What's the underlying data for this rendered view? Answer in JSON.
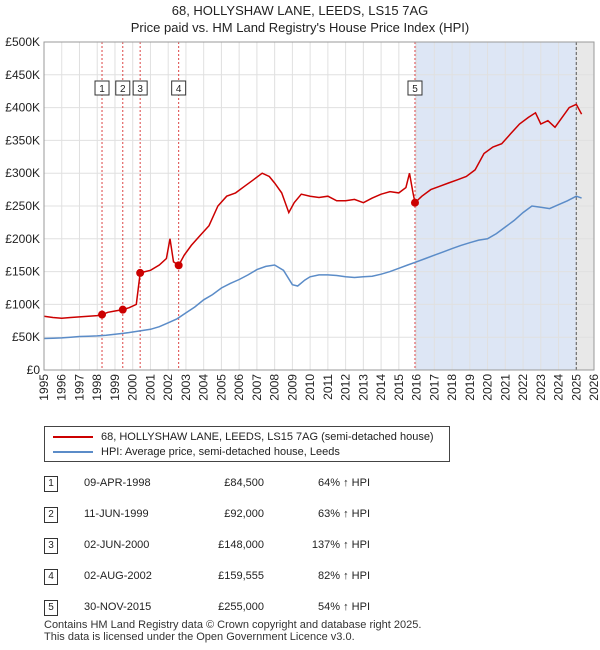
{
  "title_line1": "68, HOLLYSHAW LANE, LEEDS, LS15 7AG",
  "title_line2": "Price paid vs. HM Land Registry's House Price Index (HPI)",
  "legend": {
    "property": "68, HOLLYSHAW LANE, LEEDS, LS15 7AG (semi-detached house)",
    "hpi": "HPI: Average price, semi-detached house, Leeds"
  },
  "colors": {
    "property": "#cc0000",
    "hpi": "#5b8cc8",
    "shade": "#dde6f5",
    "vline": "#dd4444"
  },
  "sales": [
    {
      "num": "1",
      "date": "09-APR-1998",
      "price": "£84,500",
      "hpi": "64% ↑ HPI"
    },
    {
      "num": "2",
      "date": "11-JUN-1999",
      "price": "£92,000",
      "hpi": "63% ↑ HPI"
    },
    {
      "num": "3",
      "date": "02-JUN-2000",
      "price": "£148,000",
      "hpi": "137% ↑ HPI"
    },
    {
      "num": "4",
      "date": "02-AUG-2002",
      "price": "£159,555",
      "hpi": "82% ↑ HPI"
    },
    {
      "num": "5",
      "date": "30-NOV-2015",
      "price": "£255,000",
      "hpi": "54% ↑ HPI"
    }
  ],
  "footer_line1": "Contains HM Land Registry data © Crown copyright and database right 2025.",
  "footer_line2": "This data is licensed under the Open Government Licence v3.0.",
  "chart_data": {
    "type": "line",
    "xlim": [
      1995,
      2026
    ],
    "ylim": [
      0,
      500000
    ],
    "y_ticks": [
      0,
      50000,
      100000,
      150000,
      200000,
      250000,
      300000,
      350000,
      400000,
      450000,
      500000
    ],
    "y_tick_labels": [
      "£0",
      "£50K",
      "£100K",
      "£150K",
      "£200K",
      "£250K",
      "£300K",
      "£350K",
      "£400K",
      "£450K",
      "£500K"
    ],
    "x_ticks": [
      1995,
      1996,
      1997,
      1998,
      1999,
      2000,
      2001,
      2002,
      2003,
      2004,
      2005,
      2006,
      2007,
      2008,
      2009,
      2010,
      2011,
      2012,
      2013,
      2014,
      2015,
      2016,
      2017,
      2018,
      2019,
      2020,
      2021,
      2022,
      2023,
      2024,
      2025,
      2026
    ],
    "x_tick_labels": [
      "1995",
      "1996",
      "1997",
      "1998",
      "1999",
      "2000",
      "2001",
      "2002",
      "2003",
      "2004",
      "2005",
      "2006",
      "2007",
      "2008",
      "2009",
      "2010",
      "2011",
      "2012",
      "2013",
      "2014",
      "2015",
      "2016",
      "2017",
      "2018",
      "2019",
      "2020",
      "2021",
      "2022",
      "2023",
      "2024",
      "2025",
      "2026"
    ],
    "sale_points": [
      {
        "label": "1",
        "x": 1998.27,
        "y": 84500
      },
      {
        "label": "2",
        "x": 1999.44,
        "y": 92000
      },
      {
        "label": "3",
        "x": 2000.42,
        "y": 148000
      },
      {
        "label": "4",
        "x": 2002.59,
        "y": 159555
      },
      {
        "label": "5",
        "x": 2015.91,
        "y": 255000
      }
    ],
    "series": [
      {
        "name": "68, HOLLYSHAW LANE, LEEDS, LS15 7AG (semi-detached house)",
        "x": [
          1995,
          1995.5,
          1996,
          1996.5,
          1997,
          1997.5,
          1998,
          1998.27,
          1998.6,
          1999,
          1999.44,
          1999.8,
          2000.2,
          2000.42,
          2000.7,
          2001,
          2001.5,
          2001.9,
          2002.1,
          2002.3,
          2002.59,
          2002.9,
          2003.3,
          2003.8,
          2004.3,
          2004.8,
          2005.3,
          2005.8,
          2006.3,
          2006.8,
          2007.3,
          2007.7,
          2008,
          2008.4,
          2008.8,
          2009.1,
          2009.5,
          2010,
          2010.5,
          2011,
          2011.5,
          2012,
          2012.5,
          2013,
          2013.5,
          2014,
          2014.5,
          2015,
          2015.4,
          2015.6,
          2015.8,
          2015.91,
          2016.3,
          2016.8,
          2017.3,
          2017.8,
          2018.3,
          2018.8,
          2019.3,
          2019.8,
          2020.3,
          2020.8,
          2021.3,
          2021.8,
          2022.3,
          2022.7,
          2023,
          2023.4,
          2023.8,
          2024.2,
          2024.6,
          2025,
          2025.3
        ],
        "y": [
          82000,
          80000,
          79000,
          80000,
          81000,
          82000,
          83000,
          84500,
          88000,
          90000,
          92000,
          95000,
          100000,
          148000,
          150000,
          152000,
          160000,
          170000,
          200000,
          165000,
          159555,
          175000,
          190000,
          205000,
          220000,
          250000,
          265000,
          270000,
          280000,
          290000,
          300000,
          295000,
          285000,
          270000,
          240000,
          255000,
          268000,
          265000,
          263000,
          265000,
          258000,
          258000,
          260000,
          255000,
          262000,
          268000,
          272000,
          270000,
          278000,
          300000,
          270000,
          255000,
          265000,
          275000,
          280000,
          285000,
          290000,
          295000,
          305000,
          330000,
          340000,
          345000,
          360000,
          375000,
          385000,
          392000,
          375000,
          380000,
          370000,
          385000,
          400000,
          405000,
          390000
        ]
      },
      {
        "name": "HPI: Average price, semi-detached house, Leeds",
        "x": [
          1995,
          1995.5,
          1996,
          1996.5,
          1997,
          1997.5,
          1998,
          1998.5,
          1999,
          1999.5,
          2000,
          2000.5,
          2001,
          2001.5,
          2002,
          2002.5,
          2003,
          2003.5,
          2004,
          2004.5,
          2005,
          2005.5,
          2006,
          2006.5,
          2007,
          2007.5,
          2008,
          2008.5,
          2009,
          2009.3,
          2009.7,
          2010,
          2010.5,
          2011,
          2011.5,
          2012,
          2012.5,
          2013,
          2013.5,
          2014,
          2014.5,
          2015,
          2015.5,
          2016,
          2016.5,
          2017,
          2017.5,
          2018,
          2018.5,
          2019,
          2019.5,
          2020,
          2020.5,
          2021,
          2021.5,
          2022,
          2022.5,
          2023,
          2023.5,
          2024,
          2024.5,
          2025,
          2025.3
        ],
        "y": [
          48000,
          48500,
          49000,
          50000,
          51000,
          51500,
          52000,
          53000,
          54500,
          56000,
          58000,
          60000,
          62000,
          66000,
          72000,
          78000,
          87000,
          96000,
          107000,
          115000,
          125000,
          132000,
          138000,
          145000,
          153000,
          158000,
          160000,
          152000,
          130000,
          128000,
          137000,
          142000,
          145000,
          145000,
          144000,
          142000,
          141000,
          142000,
          143000,
          146000,
          150000,
          155000,
          160000,
          165000,
          170000,
          175000,
          180000,
          185000,
          190000,
          194000,
          198000,
          200000,
          208000,
          218000,
          228000,
          240000,
          250000,
          248000,
          246000,
          252000,
          258000,
          265000,
          262000
        ]
      }
    ]
  }
}
